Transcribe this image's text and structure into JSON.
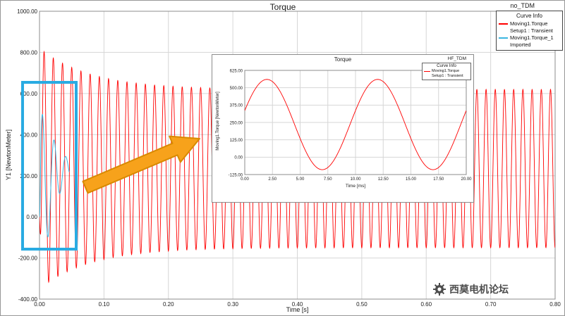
{
  "chart_data": {
    "type": "line",
    "title": "Torque",
    "top_right_label": "no_TDM",
    "xlabel": "Time [s]",
    "ylabel": "Y1 [NewtonMeter]",
    "xlim": [
      0,
      0.8
    ],
    "ylim": [
      -400,
      1000
    ],
    "x_ticks": [
      "0.00",
      "0.10",
      "0.20",
      "0.30",
      "0.40",
      "0.50",
      "0.60",
      "0.70",
      "0.80"
    ],
    "y_ticks": [
      "1000.00",
      "800.00",
      "600.00",
      "400.00",
      "200.00",
      "0.00",
      "-200.00",
      "-400.00"
    ],
    "grid": true,
    "legend": {
      "header": "Curve Info",
      "position": "top-right"
    },
    "series": [
      {
        "name": "Moving1.Torque",
        "subtitle": "Setup1 : Transient",
        "color": "#ff0000",
        "synthesis": {
          "kind": "damped_oscillation",
          "freq_hz": 70,
          "t_start": 0,
          "t_end": 0.8,
          "ramp": 0.004,
          "mean_steady": 235,
          "amp_steady": 385,
          "amp_extra": 200,
          "decay_tau": 0.08,
          "peak_start": 820,
          "peak_steady": 620,
          "trough_start": -350,
          "trough_steady": -150
        }
      },
      {
        "name": "Moving1.Torque_1",
        "subtitle": "Imported",
        "color": "#3cb6e0",
        "synthesis": {
          "kind": "damped_ringing_rise",
          "freq_hz": 55,
          "t_start": 0,
          "t_end": 0.046,
          "mean_steady": 230,
          "mean_tau": 0.01,
          "amp0": 520,
          "decay_tau": 0.02,
          "peak_start": 500
        }
      }
    ],
    "inset": {
      "title": "Torque",
      "top_right_label": "HF_TDM",
      "legend": {
        "header": "Curve Info",
        "name": "Moving1.Torque",
        "subtitle": "Setup1 : Transient"
      },
      "xlabel": "Time [ms]",
      "ylabel": "Moving1.Torque [NewtonMeter]",
      "xlim": [
        0,
        20
      ],
      "ylim": [
        -125,
        625
      ],
      "x_ticks": [
        "0.00",
        "2.50",
        "5.00",
        "7.50",
        "10.00",
        "12.50",
        "15.00",
        "17.50",
        "20.00"
      ],
      "y_ticks": [
        "625.00",
        "500.00",
        "375.00",
        "250.00",
        "125.00",
        "0.00",
        "-125.00"
      ],
      "color": "#ff0000",
      "synthesis": {
        "kind": "sine",
        "mean": 235,
        "amp": 325,
        "period_ms": 10,
        "peak_at_ms": 2.0
      }
    }
  },
  "annotations": {
    "highlight_color": "#29abe2",
    "arrow_fill": "#f7a21b",
    "arrow_stroke": "#d88a00"
  },
  "watermark": {
    "text": "西莫电机论坛"
  }
}
